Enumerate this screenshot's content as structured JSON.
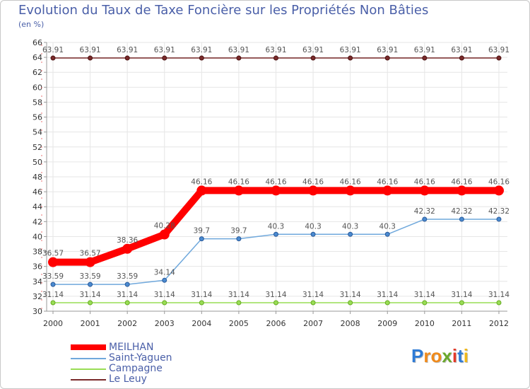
{
  "chart_data": {
    "type": "line",
    "title": "Evolution du Taux de Taxe Foncière sur les Propriétés Non Bâties",
    "subtitle": "(en %)",
    "xlabel": "",
    "ylabel": "",
    "categories": [
      "2000",
      "2001",
      "2002",
      "2003",
      "2004",
      "2005",
      "2006",
      "2007",
      "2008",
      "2009",
      "2010",
      "2011",
      "2012"
    ],
    "ylim": [
      30,
      66
    ],
    "yticks": [
      30,
      32,
      34,
      36,
      38,
      40,
      42,
      44,
      46,
      48,
      50,
      52,
      54,
      56,
      58,
      60,
      62,
      64,
      66
    ],
    "grid": true,
    "series": [
      {
        "name": "MEILHAN",
        "color": "#ff0000",
        "values": [
          36.57,
          36.57,
          38.36,
          40.28,
          46.16,
          46.16,
          46.16,
          46.16,
          46.16,
          46.16,
          46.16,
          46.16,
          46.16
        ]
      },
      {
        "name": "Saint-Yaguen",
        "color": "#6fa8dc",
        "values": [
          33.59,
          33.59,
          33.59,
          34.14,
          39.7,
          39.7,
          40.3,
          40.3,
          40.3,
          40.3,
          42.32,
          42.32,
          42.32
        ]
      },
      {
        "name": "Campagne",
        "color": "#99dd55",
        "values": [
          31.14,
          31.14,
          31.14,
          31.14,
          31.14,
          31.14,
          31.14,
          31.14,
          31.14,
          31.14,
          31.14,
          31.14,
          31.14
        ]
      },
      {
        "name": "Le Leuy",
        "color": "#7a2a2a",
        "values": [
          63.91,
          63.91,
          63.91,
          63.91,
          63.91,
          63.91,
          63.91,
          63.91,
          63.91,
          63.91,
          63.91,
          63.91,
          63.91
        ]
      }
    ],
    "legend_position": "bottom-left"
  },
  "branding": {
    "letters": [
      "P",
      "r",
      "o",
      "x",
      "i",
      "t",
      "i"
    ],
    "colors": [
      "#2e7bd6",
      "#f08a1a",
      "#f08a1a",
      "#6aa82c",
      "#e23a2a",
      "#2e7bd6",
      "#f0b81a"
    ]
  }
}
